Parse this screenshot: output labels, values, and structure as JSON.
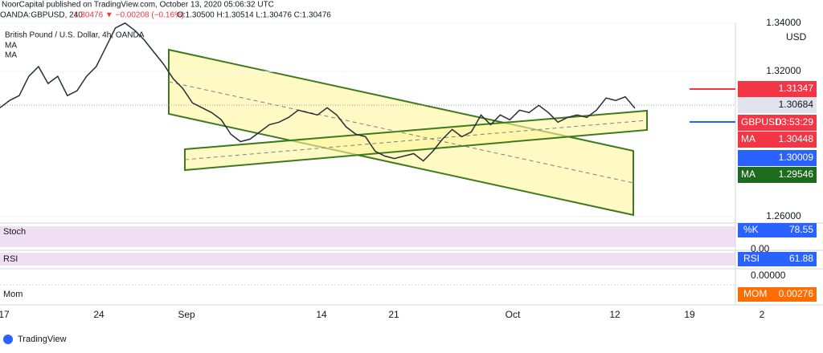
{
  "header": {
    "published": "NoorCapital published on TradingView.com, October 13, 2020 05:06:32 UTC",
    "symbol": "OANDA:GBPUSD, 240",
    "quote": "1.30476 ▼ −0.00208 (−0.16%)",
    "ohlc": "O:1.30500 H:1.30514 L:1.30476 C:1.30476"
  },
  "legend": [
    "British Pound / U.S. Dollar, 4h, OANDA",
    "MA",
    "MA"
  ],
  "chart_data": {
    "type": "line",
    "color": "#2a2e39",
    "values": [
      1.305,
      1.308,
      1.31,
      1.318,
      1.322,
      1.315,
      1.318,
      1.31,
      1.312,
      1.318,
      1.322,
      1.33,
      1.338,
      1.34,
      1.337,
      1.333,
      1.328,
      1.323,
      1.317,
      1.313,
      1.307,
      1.305,
      1.303,
      1.3,
      1.294,
      1.291,
      1.292,
      1.295,
      1.298,
      1.299,
      1.301,
      1.304,
      1.303,
      1.302,
      1.305,
      1.302,
      1.297,
      1.294,
      1.293,
      1.287,
      1.285,
      1.284,
      1.285,
      1.286,
      1.283,
      1.287,
      1.292,
      1.296,
      1.293,
      1.295,
      1.302,
      1.298,
      1.302,
      1.3,
      1.304,
      1.303,
      1.306,
      1.303,
      1.299,
      1.301,
      1.302,
      1.301,
      1.304,
      1.309,
      1.308,
      1.3095,
      1.3048
    ],
    "ylim": [
      1.2583,
      1.3396
    ],
    "yticks": [
      {
        "value": 1.34,
        "label": "1.34000"
      },
      {
        "value": 1.32,
        "label": "1.32000"
      },
      {
        "value": 1.26,
        "label": "1.26000"
      }
    ],
    "currency": "USD"
  },
  "time_axis": [
    "17",
    "24",
    "Sep",
    "14",
    "21",
    "Oct",
    "12",
    "19",
    "2"
  ],
  "price_labels": [
    {
      "value": "1.31347",
      "color": "#f23645"
    },
    {
      "value": "1.30684",
      "color": "#e0e3eb"
    },
    {
      "name": "GBPUSD",
      "timer": "03:53:29",
      "color": "#f23645"
    },
    {
      "name": "MA",
      "value": "1.30448",
      "color": "#f23645"
    },
    {
      "value": "1.30009",
      "color": "#2962ff"
    },
    {
      "name": "MA",
      "value": "1.29546",
      "color": "#1e6b1e"
    }
  ],
  "indicators": [
    {
      "name": "Stoch",
      "label": "%K",
      "value": "78.55",
      "color": "#2962ff",
      "axis": "0.00"
    },
    {
      "name": "RSI",
      "label": "RSI",
      "value": "61.88",
      "color": "#2962ff"
    },
    {
      "name": "Mom",
      "label": "MOM",
      "value": "0.00276",
      "color": "#ff6d00",
      "axis": "0.00000"
    }
  ],
  "footer": "TradingView"
}
